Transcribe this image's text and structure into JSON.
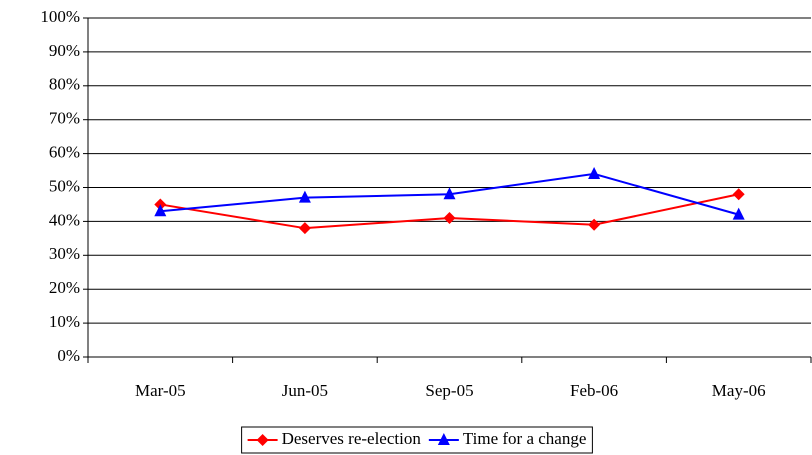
{
  "chart_data": {
    "type": "line",
    "categories": [
      "Mar-05",
      "Jun-05",
      "Sep-05",
      "Feb-06",
      "May-06"
    ],
    "series": [
      {
        "name": "Deserves re-election",
        "color": "#ff0000",
        "marker": "diamond",
        "values": [
          45,
          38,
          41,
          39,
          48
        ]
      },
      {
        "name": "Time for a change",
        "color": "#0000ff",
        "marker": "triangle",
        "values": [
          43,
          47,
          48,
          54,
          42
        ]
      }
    ],
    "ylim": [
      0,
      100
    ],
    "yticks": [
      {
        "value": 0,
        "label": "0%"
      },
      {
        "value": 10,
        "label": "10%"
      },
      {
        "value": 20,
        "label": "20%"
      },
      {
        "value": 30,
        "label": "30%"
      },
      {
        "value": 40,
        "label": "40%"
      },
      {
        "value": 50,
        "label": "50%"
      },
      {
        "value": 60,
        "label": "60%"
      },
      {
        "value": 70,
        "label": "70%"
      },
      {
        "value": 80,
        "label": "80%"
      },
      {
        "value": 90,
        "label": "90%"
      },
      {
        "value": 100,
        "label": "100%"
      }
    ],
    "grid": true,
    "legend": "bottom"
  }
}
